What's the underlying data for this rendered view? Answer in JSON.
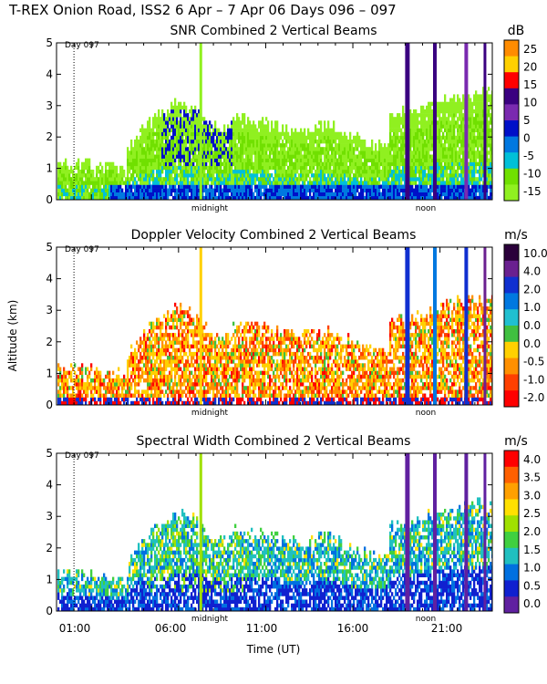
{
  "header": {
    "title": "T-REX Onion Road, ISS2    6 Apr –  7 Apr 06 Days 096 – 097"
  },
  "xaxis": {
    "label": "Time (UT)",
    "ticks": [
      "01:00",
      "06:00",
      "11:00",
      "16:00",
      "21:00"
    ],
    "tick_hours": [
      1,
      6,
      11,
      16,
      21
    ],
    "range_hours": [
      -1,
      24
    ],
    "midnight_label": "midnight",
    "midnight_hour": 7,
    "noon_label": "noon",
    "noon_hour": 19,
    "day_label": "Day 097",
    "day_marker_hour": 0
  },
  "yaxis": {
    "label": "Altitude (km)",
    "ticks": [
      "0",
      "1",
      "2",
      "3",
      "4",
      "5"
    ],
    "range": [
      0,
      5
    ]
  },
  "chart_data": [
    {
      "type": "heatmap",
      "title": "SNR Combined 2 Vertical Beams",
      "unit": "dB",
      "colorbar_labels": [
        "25",
        "20",
        "15",
        "10",
        "5",
        "0",
        "-5",
        "-10",
        "-15"
      ],
      "colorbar_colors": [
        "#ff8c00",
        "#ffd000",
        "#ff0000",
        "#3a0080",
        "#7a2ab0",
        "#0010c8",
        "#0078e0",
        "#00c0d8",
        "#70e000",
        "#90f020"
      ],
      "ylim": [
        0,
        5
      ]
    },
    {
      "type": "heatmap",
      "title": "Doppler Velocity Combined 2 Vertical Beams",
      "unit": "m/s",
      "colorbar_labels": [
        "10.0",
        "4.0",
        "2.0",
        "1.0",
        "0.0",
        "0.0",
        "-0.5",
        "-1.0",
        "-2.0"
      ],
      "colorbar_colors": [
        "#2a003a",
        "#6a2090",
        "#1030d0",
        "#0078e0",
        "#20c0d0",
        "#40c040",
        "#ffd000",
        "#ff9000",
        "#ff4000",
        "#ff0000"
      ],
      "ylim": [
        0,
        5
      ]
    },
    {
      "type": "heatmap",
      "title": "Spectral Width Combined 2 Vertical Beams",
      "unit": "m/s",
      "colorbar_labels": [
        "4.0",
        "3.5",
        "3.0",
        "2.5",
        "2.0",
        "1.5",
        "1.0",
        "0.5",
        "0.0"
      ],
      "colorbar_colors": [
        "#ff0000",
        "#ff6000",
        "#ffa000",
        "#ffe000",
        "#a0e000",
        "#40d040",
        "#20c0c0",
        "#0070e0",
        "#1020d0",
        "#6020a0"
      ],
      "ylim": [
        0,
        5
      ]
    }
  ]
}
